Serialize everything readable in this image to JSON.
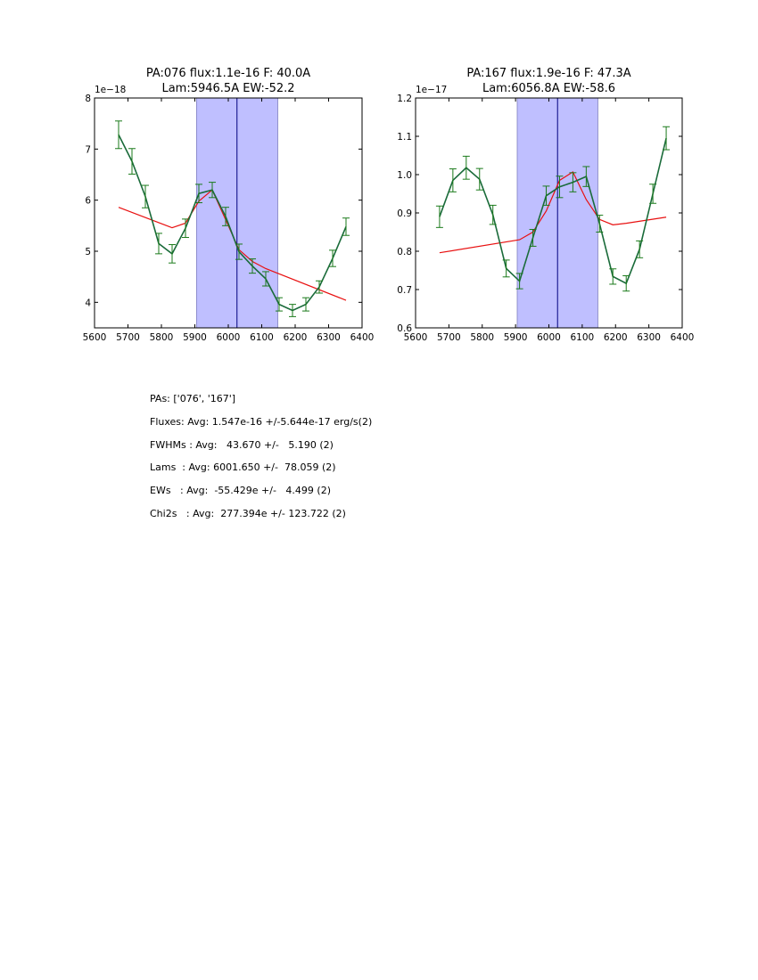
{
  "colors": {
    "data_line": "#1a6b3a",
    "errorbar": "#1a7a1a",
    "fit_line": "#e81010",
    "band_fill": "#bfbfff",
    "band_edge": "#8080c0",
    "center_line": "#000080"
  },
  "chart_data": [
    {
      "type": "line",
      "title_line1": "PA:076 flux:1.1e-16 F: 40.0A",
      "title_line2": "Lam:5946.5A EW:-52.2",
      "offset_label": "1e−18",
      "xlim": [
        5600,
        6400
      ],
      "ylim": [
        3.5,
        8
      ],
      "xticks": [
        5600,
        5700,
        5800,
        5900,
        6000,
        6100,
        6200,
        6300,
        6400
      ],
      "yticks": [
        4,
        5,
        6,
        7,
        8
      ],
      "ytick_labels": [
        "4",
        "5",
        "6",
        "7",
        "8"
      ],
      "band": [
        5905,
        6148
      ],
      "center_line": 6026,
      "series": [
        {
          "name": "data",
          "x": [
            5672,
            5712,
            5752,
            5792,
            5832,
            5872,
            5912,
            5952,
            5992,
            6032,
            6072,
            6112,
            6152,
            6192,
            6232,
            6272,
            6312,
            6352
          ],
          "y": [
            7.28,
            6.76,
            6.07,
            5.15,
            4.95,
            5.45,
            6.13,
            6.2,
            5.68,
            4.99,
            4.71,
            4.46,
            3.96,
            3.84,
            3.96,
            4.3,
            4.86,
            5.48
          ],
          "err": [
            0.27,
            0.25,
            0.22,
            0.2,
            0.18,
            0.18,
            0.18,
            0.15,
            0.18,
            0.15,
            0.14,
            0.14,
            0.13,
            0.12,
            0.13,
            0.12,
            0.16,
            0.17
          ]
        },
        {
          "name": "fit",
          "x": [
            5672,
            5832,
            5872,
            5912,
            5952,
            5992,
            6032,
            6072,
            6112,
            6352
          ],
          "y": [
            5.86,
            5.46,
            5.55,
            5.98,
            6.2,
            5.62,
            5.03,
            4.8,
            4.66,
            4.04
          ]
        }
      ]
    },
    {
      "type": "line",
      "title_line1": "PA:167 flux:1.9e-16 F: 47.3A",
      "title_line2": "Lam:6056.8A EW:-58.6",
      "offset_label": "1e−17",
      "xlim": [
        5600,
        6400
      ],
      "ylim": [
        0.6,
        1.2
      ],
      "xticks": [
        5600,
        5700,
        5800,
        5900,
        6000,
        6100,
        6200,
        6300,
        6400
      ],
      "yticks": [
        0.6,
        0.7,
        0.8,
        0.9,
        1.0,
        1.1,
        1.2
      ],
      "ytick_labels": [
        "0.6",
        "0.7",
        "0.8",
        "0.9",
        "1.0",
        "1.1",
        "1.2"
      ],
      "band": [
        5905,
        6147
      ],
      "center_line": 6026,
      "series": [
        {
          "name": "data",
          "x": [
            5672,
            5712,
            5752,
            5792,
            5832,
            5872,
            5912,
            5952,
            5992,
            6032,
            6072,
            6112,
            6152,
            6192,
            6232,
            6272,
            6312,
            6352
          ],
          "y": [
            0.89,
            0.985,
            1.018,
            0.988,
            0.895,
            0.755,
            0.722,
            0.835,
            0.945,
            0.968,
            0.98,
            0.995,
            0.872,
            0.734,
            0.716,
            0.805,
            0.95,
            1.095
          ],
          "err": [
            0.028,
            0.03,
            0.03,
            0.028,
            0.025,
            0.022,
            0.02,
            0.022,
            0.025,
            0.028,
            0.025,
            0.026,
            0.022,
            0.02,
            0.02,
            0.022,
            0.025,
            0.03
          ]
        },
        {
          "name": "fit",
          "x": [
            5672,
            5912,
            5952,
            5992,
            6032,
            6072,
            6112,
            6152,
            6192,
            6232,
            6352
          ],
          "y": [
            0.796,
            0.83,
            0.85,
            0.905,
            0.985,
            1.007,
            0.935,
            0.883,
            0.869,
            0.873,
            0.889
          ]
        }
      ]
    }
  ],
  "stats": {
    "pas": "PAs: ['076', '167']",
    "fluxes": "Fluxes: Avg: 1.547e-16 +/-5.644e-17 erg/s(2)",
    "fwhms": "FWHMs : Avg:   43.670 +/-   5.190 (2)",
    "lams": "Lams  : Avg: 6001.650 +/-  78.059 (2)",
    "ews": "EWs   : Avg:  -55.429e +/-   4.499 (2)",
    "chi2s": "Chi2s   : Avg:  277.394e +/- 123.722 (2)"
  }
}
